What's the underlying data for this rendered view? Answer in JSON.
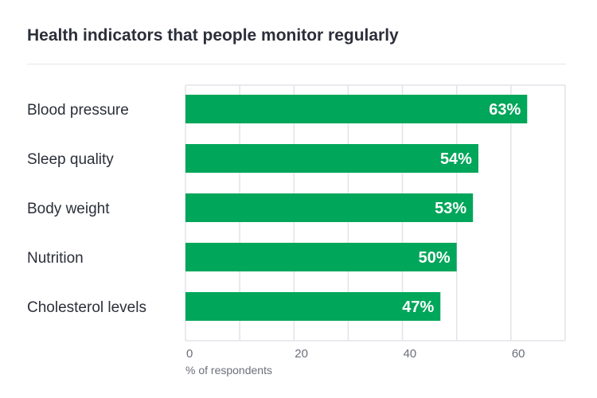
{
  "chart_data": {
    "type": "bar",
    "orientation": "horizontal",
    "title": "Health indicators that people monitor regularly",
    "xlabel": "% of respondents",
    "categories": [
      "Blood pressure",
      "Sleep quality",
      "Body weight",
      "Nutrition",
      "Cholesterol levels"
    ],
    "values": [
      63,
      54,
      53,
      50,
      47
    ],
    "data_labels": [
      "63%",
      "54%",
      "53%",
      "50%",
      "47%"
    ],
    "xlim": [
      0,
      70
    ],
    "xticks": [
      0,
      20,
      40,
      60
    ],
    "grid": true,
    "bar_color": "#00a65a"
  }
}
